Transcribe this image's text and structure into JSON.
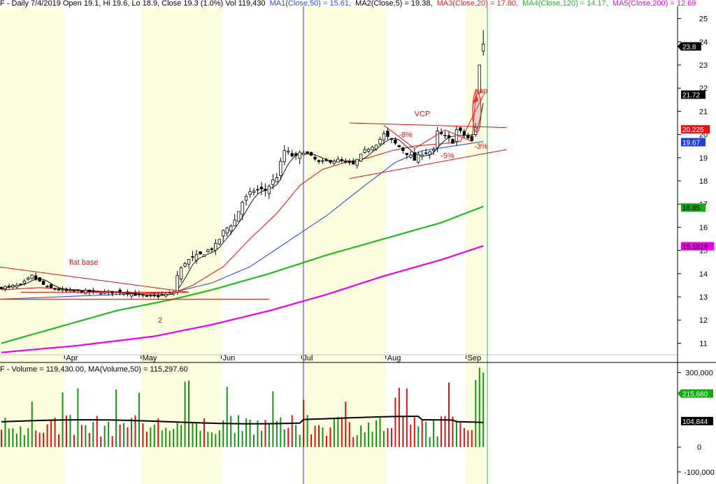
{
  "colors": {
    "band": "#fdfde0",
    "vline": "#9a9aee",
    "candle": "#000000",
    "ma1": "#2a4fd8",
    "ma2": "#000000",
    "ma3": "#e02020",
    "ma4": "#22bb22",
    "ma5": "#ee00ee",
    "anno": "#dd1111",
    "volUp": "#149414",
    "volDown": "#dd1111",
    "volMA": "#000000",
    "today": "#22bb22"
  },
  "header": {
    "prefix": "F - Daily 7/4/2019 Open 19.1, Hi 19.6, Lo 18.9, Close 19.3 (1.0%) Vol 119,430",
    "ma1": "MA1(Close,50) = 15.61,",
    "ma2": "MA2(Close,5) = 19.38,",
    "ma3": "MA3(Close,20) = 17.80,",
    "ma4": "MA4(Close,120) = 14.17,",
    "ma5": "MA5(Close,200) = 12.69"
  },
  "volume_header": "F - Volume = 119,430.00, MA(Volume,50) = 115,297.60",
  "chart_data": [
    {
      "type": "candlestick",
      "ylim": [
        10.2,
        25.5
      ],
      "y_ticks": [
        11,
        12,
        13,
        14,
        15,
        16,
        17,
        18,
        19,
        20,
        21,
        22,
        23,
        24,
        25
      ],
      "months": [
        "Apr",
        "May",
        "Jun",
        "Jul",
        "Aug",
        "Sep"
      ],
      "price_tags": [
        {
          "label": "23.8",
          "value": 23.8,
          "bg": "#000000",
          "fg": "#ffffff",
          "arrow": true
        },
        {
          "label": "21.72",
          "value": 21.72,
          "bg": "#000000",
          "fg": "#ffffff",
          "arrow": false
        },
        {
          "label": "20.225",
          "value": 20.225,
          "bg": "#ee1111",
          "fg": "#ffffff",
          "arrow": false
        },
        {
          "label": "19.67",
          "value": 19.67,
          "bg": "#1f3fd6",
          "fg": "#ffffff",
          "arrow": false
        },
        {
          "label": "16.85",
          "value": 16.85,
          "bg": "#11aa11",
          "fg": "#000000",
          "arrow": false
        },
        {
          "label": "15.1828",
          "value": 15.1828,
          "bg": "#ee00ee",
          "fg": "#000000",
          "arrow": false
        }
      ],
      "annotations": [
        {
          "text": "flat base",
          "x": "early Apr",
          "y": 14.5
        },
        {
          "text": "2",
          "x": "mid May",
          "y": 12.0
        },
        {
          "text": "VCP",
          "x": "late Aug",
          "y": 20.9
        },
        {
          "text": "-8%",
          "x": "early Aug",
          "y": 20.0
        },
        {
          "text": "-5%",
          "x": "late Aug",
          "y": 19.1
        },
        {
          "text": "-3%",
          "x": "early Sep",
          "y": 19.5
        },
        {
          "text": "gap",
          "x": "early Sep",
          "y": 21.9
        }
      ],
      "series": [
        {
          "name": "MA1(Close,50)",
          "last": 15.61
        },
        {
          "name": "MA2(Close,5)",
          "last": 19.38
        },
        {
          "name": "MA3(Close,20)",
          "last": 17.8
        },
        {
          "name": "MA4(Close,120)",
          "last": 14.17
        },
        {
          "name": "MA5(Close,200)",
          "last": 12.69
        }
      ],
      "last_bar": {
        "open": 19.1,
        "high": 19.6,
        "low": 18.9,
        "close": 19.3,
        "volume": 119430
      }
    },
    {
      "type": "bar",
      "ylim": [
        -140000,
        335000
      ],
      "y_ticks": [
        {
          "value": 300000,
          "label": "300,000"
        },
        {
          "value": 0,
          "label": "0"
        },
        {
          "value": -100000,
          "label": "-100,000"
        }
      ],
      "value_tags": [
        {
          "label": "215,680",
          "value": 215680,
          "bg": "#11aa11",
          "fg": "#ffffff",
          "arrow": true
        },
        {
          "label": "104,844",
          "value": 104844,
          "bg": "#000000",
          "fg": "#ffffff",
          "arrow": false
        }
      ],
      "ma_name": "MA(Volume,50)",
      "ma_last": 115297.6
    }
  ]
}
